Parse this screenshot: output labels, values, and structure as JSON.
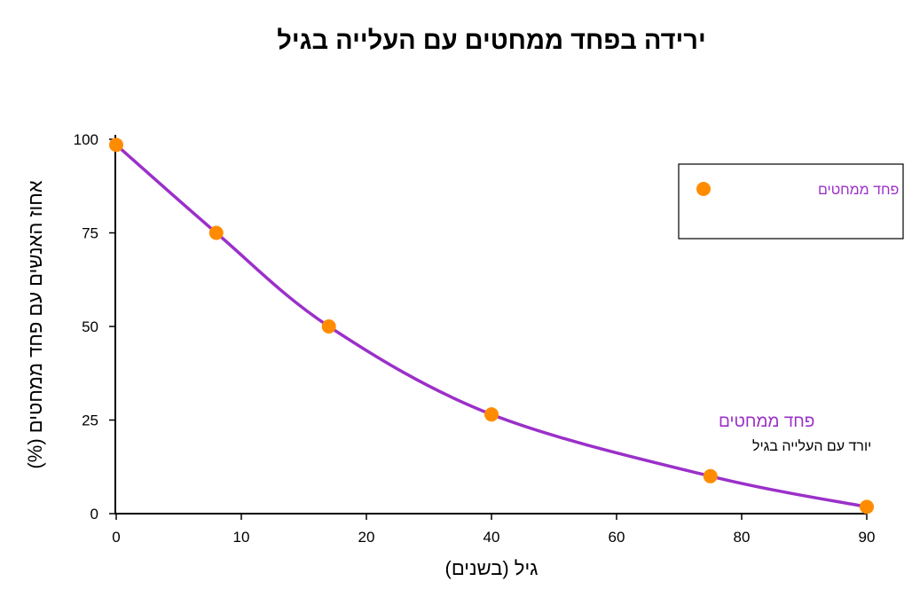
{
  "chart_data": {
    "type": "line",
    "title": "ירידה בפחד ממחטים עם העלייה בגיל",
    "xlabel": "גיל (בשנים)",
    "ylabel": "אחוז האנשים עם פחד ממחטים (%)",
    "x_tick_labels": [
      "0",
      "10",
      "20",
      "40",
      "60",
      "80",
      "90"
    ],
    "y_ticks": [
      0,
      25,
      50,
      75,
      100
    ],
    "ylim": [
      0,
      100
    ],
    "grid": false,
    "legend_position": "top-right",
    "series": [
      {
        "name": "פחד ממחטים",
        "x": [
          0,
          8,
          17,
          40,
          75,
          90
        ],
        "values": [
          98.5,
          75,
          50,
          26.5,
          10,
          1.8
        ],
        "line_color": "#9b30c9",
        "marker_color": "#ff8c00"
      }
    ],
    "annotation": {
      "main": "פחד ממחטים",
      "sub": "יורד עם העלייה בגיל"
    }
  }
}
